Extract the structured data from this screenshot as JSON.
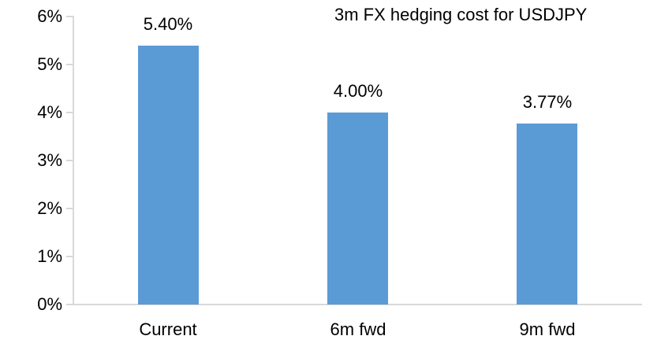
{
  "colors": {
    "bar": "#5B9BD5",
    "axis": "#D9D9D9",
    "text": "#000000",
    "background": "#FFFFFF"
  },
  "chart_data": {
    "type": "bar",
    "title": "3m FX hedging cost for USDJPY",
    "categories": [
      "Current",
      "6m fwd",
      "9m fwd"
    ],
    "values": [
      5.4,
      4.0,
      3.77
    ],
    "data_labels": [
      "5.40%",
      "4.00%",
      "3.77%"
    ],
    "xlabel": "",
    "ylabel": "",
    "ylim": [
      0,
      6
    ],
    "ytick_step": 1,
    "ytick_labels": [
      "0%",
      "1%",
      "2%",
      "3%",
      "4%",
      "5%",
      "6%"
    ],
    "grid": false,
    "legend": "none",
    "bar_color": "#5B9BD5"
  }
}
